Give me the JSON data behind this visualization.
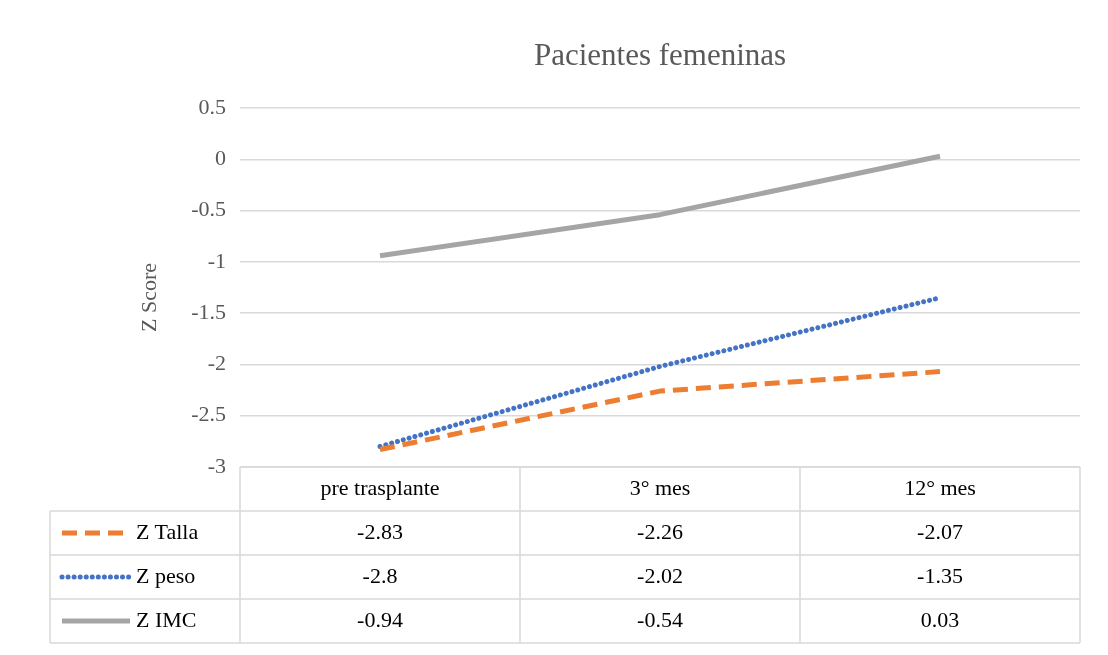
{
  "chart_data": {
    "type": "line",
    "title": "Pacientes femeninas",
    "ylabel": "Z Score",
    "categories": [
      "pre trasplante",
      "3° mes",
      "12° mes"
    ],
    "series": [
      {
        "name": "Z Talla",
        "color": "#ed7d31",
        "line_style": "dashed",
        "values": [
          -2.83,
          -2.26,
          -2.07
        ]
      },
      {
        "name": "Z peso",
        "color": "#4472c4",
        "line_style": "dotted",
        "values": [
          -2.8,
          -2.02,
          -1.35
        ]
      },
      {
        "name": "Z IMC",
        "color": "#a5a5a5",
        "line_style": "solid",
        "values": [
          -0.94,
          -0.54,
          0.03
        ]
      }
    ],
    "ylim": [
      -3,
      0.5
    ],
    "yticks": [
      -3,
      -2.5,
      -2,
      -1.5,
      -1,
      -0.5,
      0,
      0.5
    ],
    "grid": "y",
    "legend": "bottom",
    "marker": "none",
    "data_labels": true
  }
}
